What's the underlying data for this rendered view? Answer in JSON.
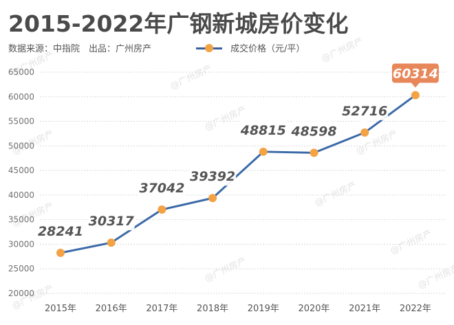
{
  "header": {
    "title": "2015-2022年广钢新城房价变化",
    "source": "数据来源：中指院　出品：广州房产",
    "legend_label": "成交价格（元/平）"
  },
  "watermark": "@广州房产",
  "colors": {
    "line": "#3b6aa8",
    "marker": "#f3a244",
    "highlight_box": "#e8875a",
    "label_box": "#ffffff",
    "grid": "#d9d9d9"
  },
  "chart_data": {
    "type": "line",
    "title": "2015-2022年广钢新城房价变化",
    "subtitle": "数据来源：中指院 出品：广州房产",
    "xlabel": "",
    "ylabel": "",
    "categories": [
      "2015年",
      "2016年",
      "2017年",
      "2018年",
      "2019年",
      "2020年",
      "2021年",
      "2022年"
    ],
    "series": [
      {
        "name": "成交价格（元/平）",
        "values": [
          28241,
          30317,
          37042,
          39392,
          48815,
          48598,
          52716,
          60314
        ]
      }
    ],
    "ylim": [
      20000,
      65000
    ],
    "yticks": [
      20000,
      25000,
      30000,
      35000,
      40000,
      45000,
      50000,
      55000,
      60000,
      65000
    ],
    "grid": true,
    "legend_position": "top",
    "highlight_index": 7
  }
}
